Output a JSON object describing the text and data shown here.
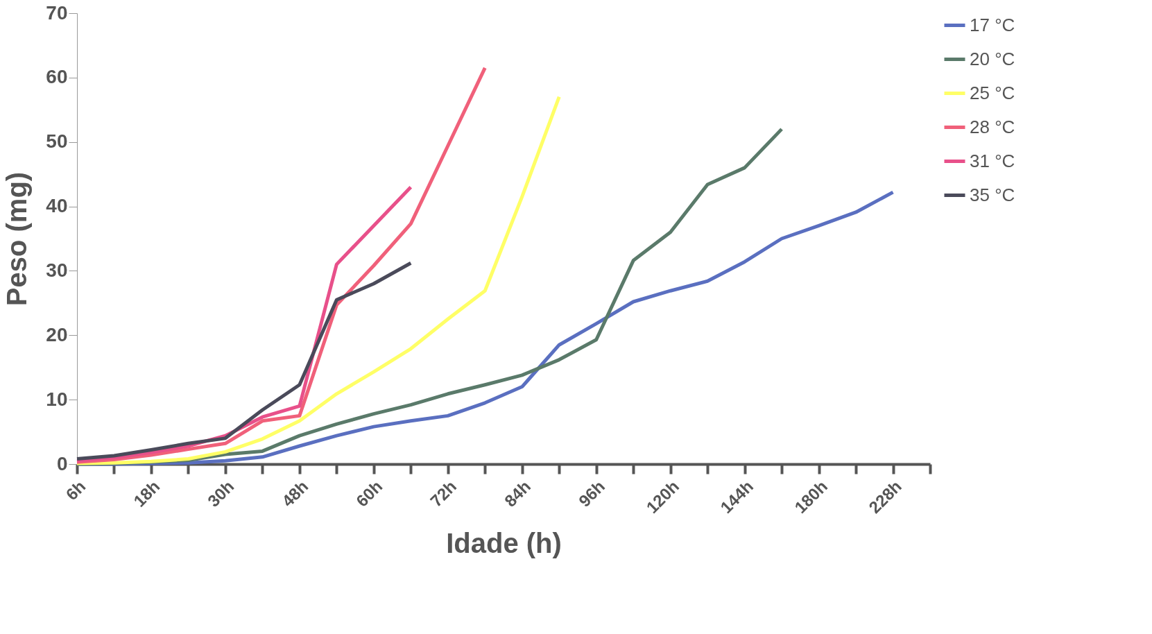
{
  "chart_data": {
    "type": "line",
    "xlabel": "Idade (h)",
    "ylabel": "Peso (mg)",
    "categories": [
      "6h",
      null,
      "18h",
      null,
      "30h",
      null,
      "48h",
      null,
      "60h",
      null,
      "72h",
      null,
      "84h",
      null,
      "96h",
      null,
      "120h",
      null,
      "144h",
      null,
      "180h",
      null,
      "228h",
      null
    ],
    "ylim": [
      0,
      70
    ],
    "yticks": [
      0,
      10,
      20,
      30,
      40,
      50,
      60,
      70
    ],
    "grid": false,
    "legend": "top right",
    "marker": "none",
    "line_style": "solid",
    "series": [
      {
        "name": "17 °C",
        "color": "#5a6fc0",
        "values": [
          0,
          0,
          0.1,
          0.2,
          0.5,
          1.1,
          2.8,
          4.4,
          5.8,
          6.7,
          7.5,
          9.5,
          12.0,
          18.5,
          21.8,
          25.2,
          26.9,
          28.4,
          31.4,
          35,
          37,
          39.1,
          42.2,
          null
        ]
      },
      {
        "name": "20 °C",
        "color": "#5a7a6a",
        "values": [
          0,
          0.1,
          0.3,
          0.6,
          1.5,
          2.0,
          4.4,
          6.2,
          7.8,
          9.2,
          10.9,
          12.3,
          13.8,
          16.2,
          19.3,
          31.6,
          36,
          43.4,
          46,
          52,
          null,
          null,
          null,
          null
        ]
      },
      {
        "name": "25 °C",
        "color": "#ffff66",
        "values": [
          0.1,
          0.2,
          0.4,
          0.8,
          1.9,
          3.9,
          6.7,
          10.9,
          14.3,
          17.9,
          22.5,
          26.9,
          41.5,
          57,
          null,
          null,
          null,
          null,
          null,
          null,
          null,
          null,
          null,
          null
        ]
      },
      {
        "name": "28 °C",
        "color": "#f0607a",
        "values": [
          0.3,
          0.7,
          1.4,
          2.3,
          3.2,
          6.7,
          7.5,
          24.7,
          30.8,
          37.3,
          49.4,
          61.5,
          null,
          null,
          null,
          null,
          null,
          null,
          null,
          null,
          null,
          null,
          null,
          null
        ]
      },
      {
        "name": "31 °C",
        "color": "#e8508a",
        "values": [
          0.5,
          1.0,
          1.8,
          2.8,
          4.4,
          7.3,
          9,
          31,
          37,
          43,
          null,
          null,
          null,
          null,
          null,
          null,
          null,
          null,
          null,
          null,
          null,
          null,
          null,
          null
        ]
      },
      {
        "name": "35 °C",
        "color": "#4a4a5a",
        "values": [
          0.8,
          1.3,
          2.2,
          3.2,
          4.0,
          8.4,
          12.3,
          25.5,
          28,
          31.2,
          null,
          null,
          null,
          null,
          null,
          null,
          null,
          null,
          null,
          null,
          null,
          null,
          null,
          null
        ]
      }
    ]
  }
}
